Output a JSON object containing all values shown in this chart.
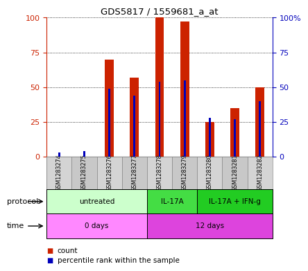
{
  "title": "GDS5817 / 1559681_a_at",
  "samples": [
    "GSM1283274",
    "GSM1283275",
    "GSM1283276",
    "GSM1283277",
    "GSM1283278",
    "GSM1283279",
    "GSM1283280",
    "GSM1283281",
    "GSM1283282"
  ],
  "count_values": [
    0,
    0,
    70,
    57,
    100,
    97,
    25,
    35,
    50
  ],
  "percentile_values": [
    3,
    4,
    49,
    44,
    54,
    55,
    28,
    27,
    40
  ],
  "bar_color_red": "#cc2200",
  "bar_color_blue": "#0000bb",
  "ylim": [
    0,
    100
  ],
  "yticks": [
    0,
    25,
    50,
    75,
    100
  ],
  "ytick_labels_left": [
    "0",
    "25",
    "50",
    "75",
    "100"
  ],
  "ytick_labels_right": [
    "0",
    "25",
    "50",
    "75",
    "100%"
  ],
  "protocol_groups": [
    {
      "label": "untreated",
      "start": 0,
      "end": 4,
      "facecolor": "#ccffcc"
    },
    {
      "label": "IL-17A",
      "start": 4,
      "end": 6,
      "facecolor": "#44dd44"
    },
    {
      "label": "IL-17A + IFN-g",
      "start": 6,
      "end": 9,
      "facecolor": "#22cc22"
    }
  ],
  "time_groups": [
    {
      "label": "0 days",
      "start": 0,
      "end": 4,
      "facecolor": "#ff88ff"
    },
    {
      "label": "12 days",
      "start": 4,
      "end": 9,
      "facecolor": "#dd44dd"
    }
  ],
  "sample_row_colors": [
    "#d4d4d4",
    "#c8c8c8"
  ],
  "protocol_label": "protocol",
  "time_label": "time",
  "legend_count": "count",
  "legend_percentile": "percentile rank within the sample",
  "red_bar_width": 0.35,
  "blue_bar_width": 0.08
}
